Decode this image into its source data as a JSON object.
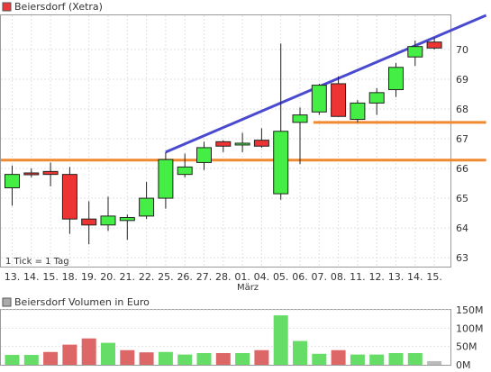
{
  "chart_data": [
    {
      "type": "candlestick",
      "legend": {
        "label": "Beiersdorf (Xetra)",
        "color": "#e8393c"
      },
      "note": "1 Tick = 1 Tag",
      "xlabel": "März",
      "categories": [
        "13.",
        "14.",
        "15.",
        "18.",
        "19.",
        "20.",
        "21.",
        "22.",
        "25.",
        "26.",
        "27.",
        "28.",
        "01.",
        "04.",
        "05.",
        "06.",
        "07.",
        "08.",
        "11.",
        "12.",
        "13.",
        "14.",
        "15."
      ],
      "yticks": [
        63,
        64,
        65,
        66,
        67,
        68,
        69,
        70
      ],
      "ylim": [
        62.7,
        71.15
      ],
      "candles": [
        {
          "o": 65.35,
          "h": 66.1,
          "l": 64.75,
          "c": 65.8
        },
        {
          "o": 65.85,
          "h": 66.0,
          "l": 65.7,
          "c": 65.8
        },
        {
          "o": 65.9,
          "h": 66.2,
          "l": 65.4,
          "c": 65.8
        },
        {
          "o": 65.8,
          "h": 66.05,
          "l": 63.8,
          "c": 64.3
        },
        {
          "o": 64.3,
          "h": 64.9,
          "l": 63.45,
          "c": 64.1
        },
        {
          "o": 64.1,
          "h": 65.05,
          "l": 63.9,
          "c": 64.4
        },
        {
          "o": 64.25,
          "h": 64.45,
          "l": 63.6,
          "c": 64.35
        },
        {
          "o": 64.4,
          "h": 65.55,
          "l": 64.3,
          "c": 65.0
        },
        {
          "o": 65.0,
          "h": 66.55,
          "l": 64.65,
          "c": 66.3
        },
        {
          "o": 65.8,
          "h": 66.5,
          "l": 65.7,
          "c": 66.05
        },
        {
          "o": 66.2,
          "h": 66.9,
          "l": 65.95,
          "c": 66.7
        },
        {
          "o": 66.9,
          "h": 66.95,
          "l": 66.55,
          "c": 66.75
        },
        {
          "o": 66.85,
          "h": 67.2,
          "l": 66.55,
          "c": 66.85
        },
        {
          "o": 66.95,
          "h": 67.35,
          "l": 66.7,
          "c": 66.75
        },
        {
          "o": 65.15,
          "h": 70.2,
          "l": 64.95,
          "c": 67.25
        },
        {
          "o": 67.55,
          "h": 68.05,
          "l": 66.15,
          "c": 67.8
        },
        {
          "o": 67.9,
          "h": 68.85,
          "l": 67.8,
          "c": 68.8
        },
        {
          "o": 68.85,
          "h": 69.1,
          "l": 67.75,
          "c": 67.75
        },
        {
          "o": 67.65,
          "h": 68.3,
          "l": 67.55,
          "c": 68.2
        },
        {
          "o": 68.2,
          "h": 68.7,
          "l": 67.8,
          "c": 68.55
        },
        {
          "o": 68.65,
          "h": 69.55,
          "l": 68.4,
          "c": 69.4
        },
        {
          "o": 69.75,
          "h": 70.3,
          "l": 69.45,
          "c": 70.1
        },
        {
          "o": 70.25,
          "h": 70.4,
          "l": 70.0,
          "c": 70.05
        }
      ],
      "trend_lines": [
        {
          "name": "resistance",
          "color": "#4a4ad0",
          "from": {
            "index": 8,
            "y": 66.55
          },
          "to": {
            "index": 24.7,
            "y": 71.15
          }
        },
        {
          "name": "support-upper",
          "color": "#f08a30",
          "from": {
            "index": 15.7,
            "y": 67.55
          },
          "to": {
            "index": 24.7,
            "y": 67.55
          }
        },
        {
          "name": "support-lower",
          "color": "#f08a30",
          "from": {
            "index": -0.6,
            "y": 66.28
          },
          "to": {
            "index": 24.7,
            "y": 66.28
          }
        }
      ],
      "up_color": "#44ee44",
      "down_color": "#ee3333"
    },
    {
      "type": "bar",
      "legend": {
        "label": "Beiersdorf Volumen in Euro",
        "color": "#aaaaaa"
      },
      "yticks": [
        "0M",
        "50M",
        "100M",
        "150M"
      ],
      "ytick_values": [
        0,
        50,
        100,
        150
      ],
      "ylim": [
        0,
        150
      ],
      "categories": [
        "13.",
        "14.",
        "15.",
        "18.",
        "19.",
        "20.",
        "21.",
        "22.",
        "25.",
        "26.",
        "27.",
        "28.",
        "01.",
        "04.",
        "05.",
        "06.",
        "07.",
        "08.",
        "11.",
        "12.",
        "13.",
        "14.",
        "15."
      ],
      "values": [
        27,
        27,
        35,
        55,
        72,
        60,
        40,
        34,
        35,
        28,
        32,
        32,
        32,
        40,
        135,
        65,
        30,
        40,
        28,
        28,
        32,
        32,
        10
      ],
      "colors": [
        "green",
        "green",
        "red",
        "red",
        "red",
        "green",
        "red",
        "red",
        "green",
        "green",
        "green",
        "red",
        "green",
        "red",
        "green",
        "green",
        "green",
        "red",
        "green",
        "green",
        "green",
        "green",
        "gray"
      ]
    }
  ]
}
